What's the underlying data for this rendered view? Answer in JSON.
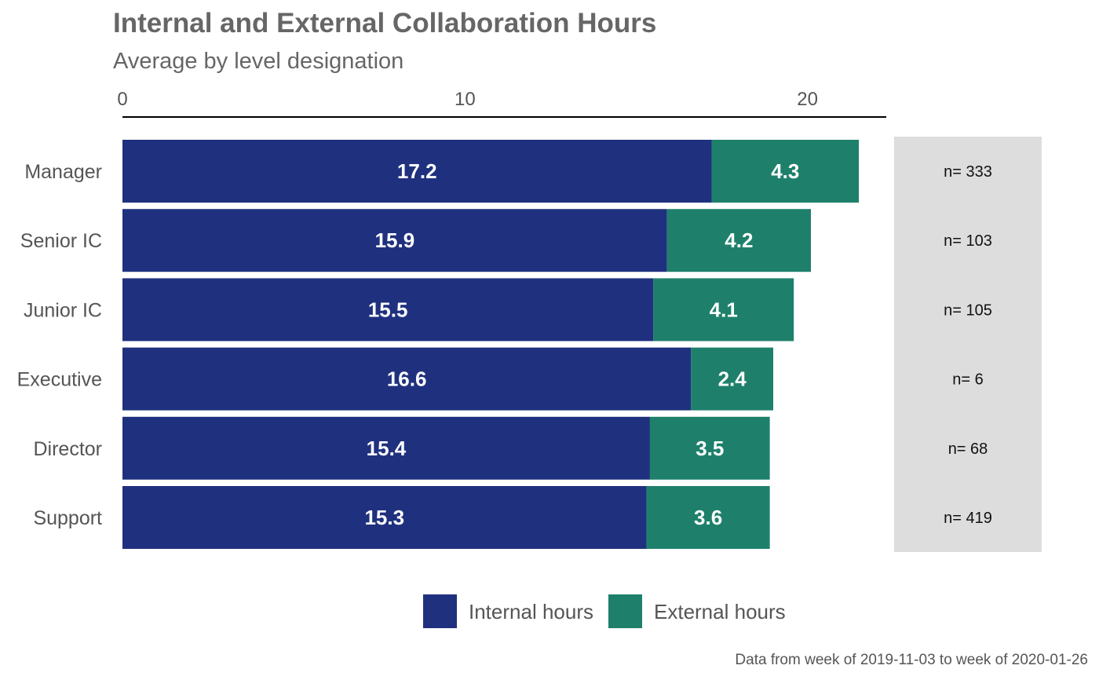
{
  "chart_data": {
    "type": "bar",
    "orientation": "horizontal",
    "stacked": true,
    "title": "Internal and External Collaboration Hours",
    "subtitle": "Average by level designation",
    "caption": "Data from week of 2019-11-03 to week of 2020-01-26",
    "xlim": [
      0,
      22.3
    ],
    "x_ticks": [
      0,
      10,
      20
    ],
    "x_tick_labels": [
      "0",
      "10",
      "20"
    ],
    "x_axis_position": "top",
    "grid": false,
    "legend_position": "bottom",
    "categories": [
      "Manager",
      "Senior IC",
      "Junior IC",
      "Executive",
      "Director",
      "Support"
    ],
    "series": [
      {
        "name": "Internal hours",
        "color": "#1f317e",
        "values": [
          17.2,
          15.9,
          15.5,
          16.6,
          15.4,
          15.3
        ],
        "labels": [
          "17.2",
          "15.9",
          "15.5",
          "16.6",
          "15.4",
          "15.3"
        ]
      },
      {
        "name": "External hours",
        "color": "#1e806b",
        "values": [
          4.3,
          4.2,
          4.1,
          2.4,
          3.5,
          3.6
        ],
        "labels": [
          "4.3",
          "4.2",
          "4.1",
          "2.4",
          "3.5",
          "3.6"
        ]
      }
    ],
    "n_labels": [
      "n= 333",
      "n= 103",
      "n= 105",
      "n= 6",
      "n= 68",
      "n= 419"
    ],
    "n_panel_color": "#dddddd"
  }
}
